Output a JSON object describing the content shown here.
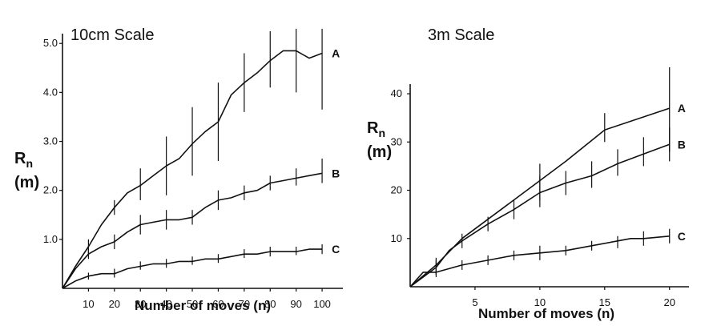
{
  "chart_data": [
    {
      "type": "line",
      "title": "10cm Scale",
      "xlabel": "Number of moves (n)",
      "ylabel": "R",
      "ylabel_sub": "n",
      "ylabel_unit": "(m)",
      "xlim": [
        0,
        108
      ],
      "ylim": [
        0,
        5.2
      ],
      "xticks": [
        10,
        20,
        30,
        40,
        50,
        60,
        70,
        80,
        90,
        100
      ],
      "yticks": [
        1.0,
        2.0,
        3.0,
        4.0,
        5.0
      ],
      "ytick_labels": [
        "1.0",
        "2.0",
        "3.0",
        "4.0",
        "5.0"
      ],
      "series": [
        {
          "name": "A",
          "x": [
            0,
            5,
            10,
            15,
            20,
            25,
            30,
            35,
            40,
            45,
            50,
            55,
            60,
            65,
            70,
            75,
            80,
            85,
            90,
            95,
            100
          ],
          "y": [
            0,
            0.45,
            0.85,
            1.3,
            1.65,
            1.95,
            2.1,
            2.3,
            2.5,
            2.65,
            2.95,
            3.2,
            3.4,
            3.95,
            4.2,
            4.4,
            4.65,
            4.85,
            4.85,
            4.7,
            4.8
          ],
          "err_x": [
            10,
            20,
            30,
            40,
            50,
            60,
            70,
            80,
            90,
            100
          ],
          "err_lo": [
            0.7,
            1.5,
            1.8,
            1.9,
            2.3,
            2.6,
            3.6,
            4.1,
            4.0,
            3.65
          ],
          "err_hi": [
            1.0,
            1.8,
            2.45,
            3.1,
            3.7,
            4.2,
            4.8,
            5.25,
            5.3,
            5.3
          ]
        },
        {
          "name": "B",
          "x": [
            0,
            5,
            10,
            15,
            20,
            25,
            30,
            35,
            40,
            45,
            50,
            55,
            60,
            65,
            70,
            75,
            80,
            85,
            90,
            95,
            100
          ],
          "y": [
            0,
            0.4,
            0.7,
            0.85,
            0.95,
            1.15,
            1.3,
            1.35,
            1.4,
            1.4,
            1.45,
            1.65,
            1.8,
            1.85,
            1.95,
            2.0,
            2.15,
            2.2,
            2.25,
            2.3,
            2.35
          ],
          "err_x": [
            10,
            20,
            30,
            40,
            50,
            60,
            70,
            80,
            90,
            100
          ],
          "err_lo": [
            0.6,
            0.8,
            1.1,
            1.2,
            1.3,
            1.6,
            1.8,
            2.0,
            2.1,
            2.15
          ],
          "err_hi": [
            0.8,
            1.1,
            1.5,
            1.6,
            1.6,
            2.0,
            2.1,
            2.3,
            2.45,
            2.65
          ]
        },
        {
          "name": "C",
          "x": [
            0,
            5,
            10,
            15,
            20,
            25,
            30,
            35,
            40,
            45,
            50,
            55,
            60,
            65,
            70,
            75,
            80,
            85,
            90,
            95,
            100
          ],
          "y": [
            0,
            0.15,
            0.25,
            0.3,
            0.3,
            0.4,
            0.45,
            0.5,
            0.5,
            0.55,
            0.55,
            0.6,
            0.6,
            0.65,
            0.7,
            0.7,
            0.75,
            0.75,
            0.75,
            0.8,
            0.8
          ],
          "err_x": [
            10,
            20,
            30,
            40,
            50,
            60,
            70,
            80,
            90,
            100
          ],
          "err_lo": [
            0.18,
            0.22,
            0.38,
            0.42,
            0.48,
            0.52,
            0.62,
            0.65,
            0.68,
            0.7
          ],
          "err_hi": [
            0.32,
            0.4,
            0.55,
            0.6,
            0.65,
            0.7,
            0.8,
            0.85,
            0.85,
            0.9
          ]
        }
      ]
    },
    {
      "type": "line",
      "title": "3m Scale",
      "xlabel": "Number of moves (n)",
      "ylabel": "R",
      "ylabel_sub": "n",
      "ylabel_unit": "(m)",
      "xlim": [
        0,
        21.5
      ],
      "ylim": [
        0,
        42
      ],
      "xticks": [
        5,
        10,
        15,
        20
      ],
      "yticks": [
        10,
        20,
        30,
        40
      ],
      "ytick_labels": [
        "10",
        "20",
        "30",
        "40"
      ],
      "series": [
        {
          "name": "A",
          "x": [
            0,
            2,
            4,
            6,
            8,
            10,
            12,
            15,
            20
          ],
          "y": [
            0,
            4.5,
            10,
            14,
            18,
            22,
            26,
            32.5,
            37
          ],
          "err_x": [
            2,
            10,
            15,
            20
          ],
          "err_lo": [
            2,
            18,
            30,
            28
          ],
          "err_hi": [
            6,
            25.5,
            36,
            45.5
          ]
        },
        {
          "name": "B",
          "x": [
            0,
            2,
            3,
            4,
            6,
            8,
            10,
            12,
            14,
            16,
            18,
            20
          ],
          "y": [
            0,
            4,
            7.5,
            9.5,
            13,
            16,
            19.5,
            21.5,
            23,
            25.5,
            27.5,
            29.5
          ],
          "err_x": [
            2,
            4,
            6,
            8,
            10,
            12,
            14,
            16,
            18,
            20
          ],
          "err_lo": [
            2.5,
            8,
            11.5,
            14,
            16.5,
            19,
            20.5,
            23,
            25,
            26
          ],
          "err_hi": [
            5.5,
            11,
            14.5,
            18,
            23,
            24,
            26,
            28.5,
            31,
            33
          ]
        },
        {
          "name": "C",
          "x": [
            0,
            1,
            2,
            4,
            6,
            8,
            10,
            12,
            14,
            16,
            17,
            18,
            20
          ],
          "y": [
            0,
            3,
            3,
            4.5,
            5.5,
            6.5,
            7,
            7.5,
            8.5,
            9.5,
            10,
            10,
            10.5
          ],
          "err_x": [
            2,
            4,
            6,
            8,
            10,
            12,
            14,
            16,
            18,
            20
          ],
          "err_lo": [
            2.5,
            3.5,
            4.5,
            5.5,
            5.5,
            6.5,
            7.5,
            8,
            8.5,
            9
          ],
          "err_hi": [
            3.5,
            5.5,
            6.5,
            7.5,
            8.5,
            8.5,
            9.5,
            10.5,
            11.5,
            12
          ]
        }
      ]
    }
  ]
}
